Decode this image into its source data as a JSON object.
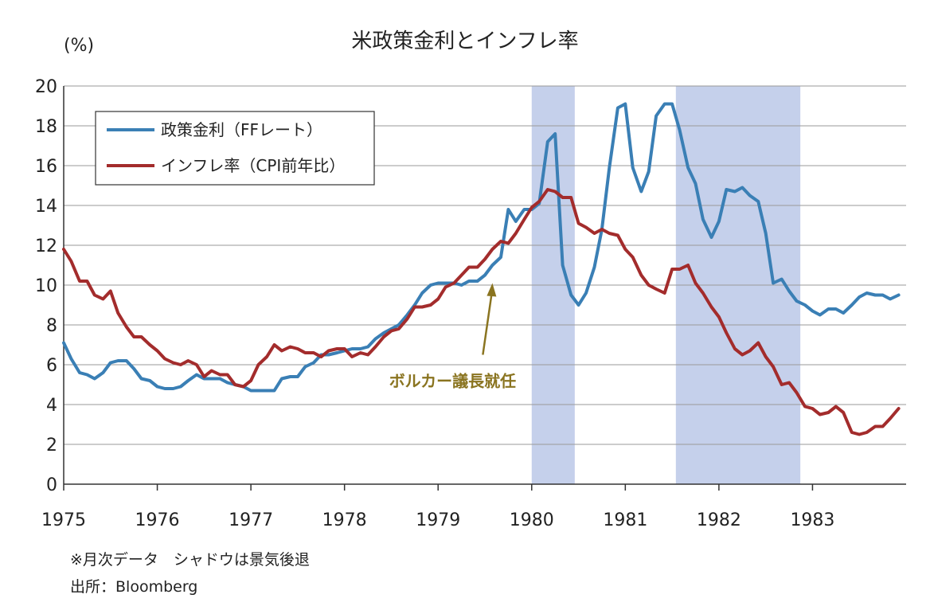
{
  "chart_data": {
    "type": "line",
    "title": "米政策金利とインフレ率",
    "ylabel": "(%)",
    "ylim": [
      0,
      20
    ],
    "yticks": [
      "0",
      "2",
      "4",
      "6",
      "8",
      "10",
      "12",
      "14",
      "16",
      "18",
      "20"
    ],
    "xlim": [
      1975,
      1984
    ],
    "xticks": [
      "1975",
      "1976",
      "1977",
      "1978",
      "1979",
      "1980",
      "1981",
      "1982",
      "1983"
    ],
    "grid": "horizontal",
    "legend_position": "top-left",
    "shadings": [
      {
        "start": 1980.0,
        "end": 1980.46
      },
      {
        "start": 1981.54,
        "end": 1982.87
      }
    ],
    "series": [
      {
        "name": "政策金利（FFレート）",
        "color": "#3a7fb5",
        "x": [
          1975.0,
          1975.08,
          1975.17,
          1975.25,
          1975.33,
          1975.42,
          1975.5,
          1975.58,
          1975.67,
          1975.75,
          1975.83,
          1975.92,
          1976.0,
          1976.08,
          1976.17,
          1976.25,
          1976.33,
          1976.42,
          1976.5,
          1976.58,
          1976.67,
          1976.75,
          1976.83,
          1976.92,
          1977.0,
          1977.08,
          1977.17,
          1977.25,
          1977.33,
          1977.42,
          1977.5,
          1977.58,
          1977.67,
          1977.75,
          1977.83,
          1977.92,
          1978.0,
          1978.08,
          1978.17,
          1978.25,
          1978.33,
          1978.42,
          1978.5,
          1978.58,
          1978.67,
          1978.75,
          1978.83,
          1978.92,
          1979.0,
          1979.08,
          1979.17,
          1979.25,
          1979.33,
          1979.42,
          1979.5,
          1979.58,
          1979.67,
          1979.75,
          1979.83,
          1979.92,
          1980.0,
          1980.08,
          1980.17,
          1980.25,
          1980.33,
          1980.42,
          1980.5,
          1980.58,
          1980.67,
          1980.75,
          1980.83,
          1980.92,
          1981.0,
          1981.08,
          1981.17,
          1981.25,
          1981.33,
          1981.42,
          1981.5,
          1981.58,
          1981.67,
          1981.75,
          1981.83,
          1981.92,
          1982.0,
          1982.08,
          1982.17,
          1982.25,
          1982.33,
          1982.42,
          1982.5,
          1982.58,
          1982.67,
          1982.75,
          1982.83,
          1982.92,
          1983.0,
          1983.08,
          1983.17,
          1983.25,
          1983.33,
          1983.42,
          1983.5,
          1983.58,
          1983.67,
          1983.75,
          1983.83,
          1983.92
        ],
        "values": [
          7.1,
          6.3,
          5.6,
          5.5,
          5.3,
          5.6,
          6.1,
          6.2,
          6.2,
          5.8,
          5.3,
          5.2,
          4.9,
          4.8,
          4.8,
          4.9,
          5.2,
          5.5,
          5.3,
          5.3,
          5.3,
          5.1,
          5.0,
          4.9,
          4.7,
          4.7,
          4.7,
          4.7,
          5.3,
          5.4,
          5.4,
          5.9,
          6.1,
          6.5,
          6.5,
          6.6,
          6.7,
          6.8,
          6.8,
          6.9,
          7.3,
          7.6,
          7.8,
          8.0,
          8.5,
          9.0,
          9.6,
          10.0,
          10.1,
          10.1,
          10.1,
          10.0,
          10.2,
          10.2,
          10.5,
          11.0,
          11.4,
          13.8,
          13.2,
          13.8,
          13.8,
          14.1,
          17.2,
          17.6,
          11.0,
          9.5,
          9.0,
          9.6,
          10.9,
          12.8,
          15.9,
          18.9,
          19.1,
          15.9,
          14.7,
          15.7,
          18.5,
          19.1,
          19.1,
          17.8,
          15.9,
          15.1,
          13.3,
          12.4,
          13.2,
          14.8,
          14.7,
          14.9,
          14.5,
          14.2,
          12.6,
          10.1,
          10.3,
          9.7,
          9.2,
          9.0,
          8.7,
          8.5,
          8.8,
          8.8,
          8.6,
          9.0,
          9.4,
          9.6,
          9.5,
          9.5,
          9.3,
          9.5
        ]
      },
      {
        "name": "インフレ率（CPI前年比）",
        "color": "#a32c2c",
        "x": [
          1975.0,
          1975.08,
          1975.17,
          1975.25,
          1975.33,
          1975.42,
          1975.5,
          1975.58,
          1975.67,
          1975.75,
          1975.83,
          1975.92,
          1976.0,
          1976.08,
          1976.17,
          1976.25,
          1976.33,
          1976.42,
          1976.5,
          1976.58,
          1976.67,
          1976.75,
          1976.83,
          1976.92,
          1977.0,
          1977.08,
          1977.17,
          1977.25,
          1977.33,
          1977.42,
          1977.5,
          1977.58,
          1977.67,
          1977.75,
          1977.83,
          1977.92,
          1978.0,
          1978.08,
          1978.17,
          1978.25,
          1978.33,
          1978.42,
          1978.5,
          1978.58,
          1978.67,
          1978.75,
          1978.83,
          1978.92,
          1979.0,
          1979.08,
          1979.17,
          1979.25,
          1979.33,
          1979.42,
          1979.5,
          1979.58,
          1979.67,
          1979.75,
          1979.83,
          1979.92,
          1980.0,
          1980.08,
          1980.17,
          1980.25,
          1980.33,
          1980.42,
          1980.5,
          1980.58,
          1980.67,
          1980.75,
          1980.83,
          1980.92,
          1981.0,
          1981.08,
          1981.17,
          1981.25,
          1981.33,
          1981.42,
          1981.5,
          1981.58,
          1981.67,
          1981.75,
          1981.83,
          1981.92,
          1982.0,
          1982.08,
          1982.17,
          1982.25,
          1982.33,
          1982.42,
          1982.5,
          1982.58,
          1982.67,
          1982.75,
          1982.83,
          1982.92,
          1983.0,
          1983.08,
          1983.17,
          1983.25,
          1983.33,
          1983.42,
          1983.5,
          1983.58,
          1983.67,
          1983.75,
          1983.83,
          1983.92
        ],
        "values": [
          11.8,
          11.2,
          10.2,
          10.2,
          9.5,
          9.3,
          9.7,
          8.6,
          7.9,
          7.4,
          7.4,
          7.0,
          6.7,
          6.3,
          6.1,
          6.0,
          6.2,
          6.0,
          5.4,
          5.7,
          5.5,
          5.5,
          5.0,
          4.9,
          5.2,
          6.0,
          6.4,
          7.0,
          6.7,
          6.9,
          6.8,
          6.6,
          6.6,
          6.4,
          6.7,
          6.8,
          6.8,
          6.4,
          6.6,
          6.5,
          6.9,
          7.4,
          7.7,
          7.8,
          8.3,
          8.9,
          8.9,
          9.0,
          9.3,
          9.9,
          10.1,
          10.5,
          10.9,
          10.9,
          11.3,
          11.8,
          12.2,
          12.1,
          12.6,
          13.3,
          13.9,
          14.2,
          14.8,
          14.7,
          14.4,
          14.4,
          13.1,
          12.9,
          12.6,
          12.8,
          12.6,
          12.5,
          11.8,
          11.4,
          10.5,
          10.0,
          9.8,
          9.6,
          10.8,
          10.8,
          11.0,
          10.1,
          9.6,
          8.9,
          8.4,
          7.6,
          6.8,
          6.5,
          6.7,
          7.1,
          6.4,
          5.9,
          5.0,
          5.1,
          4.6,
          3.9,
          3.8,
          3.5,
          3.6,
          3.9,
          3.6,
          2.6,
          2.5,
          2.6,
          2.9,
          2.9,
          3.3,
          3.8
        ]
      }
    ],
    "annotations": [
      {
        "text": "ボルカー議長就任",
        "x": 1979.58,
        "y": 10.1
      }
    ]
  },
  "notes": {
    "line1": "※月次データ　シャドウは景気後退",
    "line2": "出所：Bloomberg"
  }
}
